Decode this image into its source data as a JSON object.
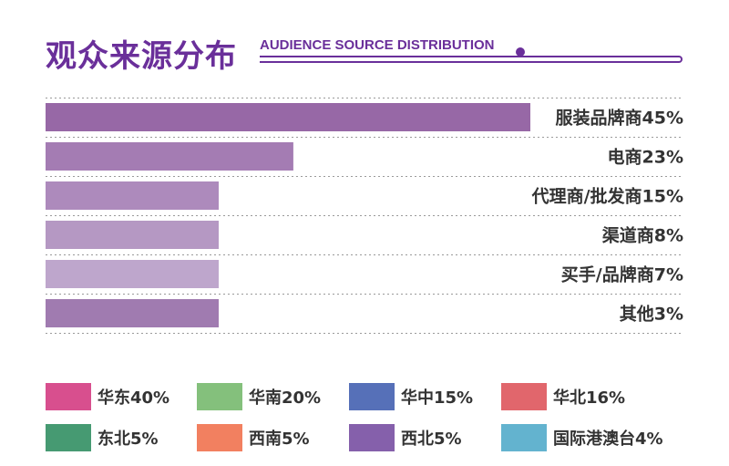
{
  "header": {
    "title_cn": "观众来源分布",
    "title_en": "AUDIENCE SOURCE DISTRIBUTION"
  },
  "chart_data": {
    "type": "bar",
    "orientation": "horizontal",
    "categories": [
      "服装品牌商45%",
      "电商23%",
      "代理商/批发商15%",
      "渠道商8%",
      "买手/品牌商7%",
      "其他3%"
    ],
    "values": [
      45,
      23,
      15,
      8,
      7,
      3
    ],
    "colors": [
      "#9768a6",
      "#a47cb3",
      "#ad8abc",
      "#b598c3",
      "#bea6cc",
      "#a07bb0"
    ],
    "grid": "dotted horizontal separators",
    "value_labels": false
  },
  "legend": {
    "items": [
      {
        "label": "华东40%",
        "color": "#d84f8e"
      },
      {
        "label": "华南20%",
        "color": "#84c07c"
      },
      {
        "label": "华中15%",
        "color": "#5670b8"
      },
      {
        "label": "华北16%",
        "color": "#e1666c"
      },
      {
        "label": "东北5%",
        "color": "#469a72"
      },
      {
        "label": "西南5%",
        "color": "#f28060"
      },
      {
        "label": "西北5%",
        "color": "#8560ab"
      },
      {
        "label": "国际港澳台4%",
        "color": "#63b3cf"
      }
    ]
  }
}
